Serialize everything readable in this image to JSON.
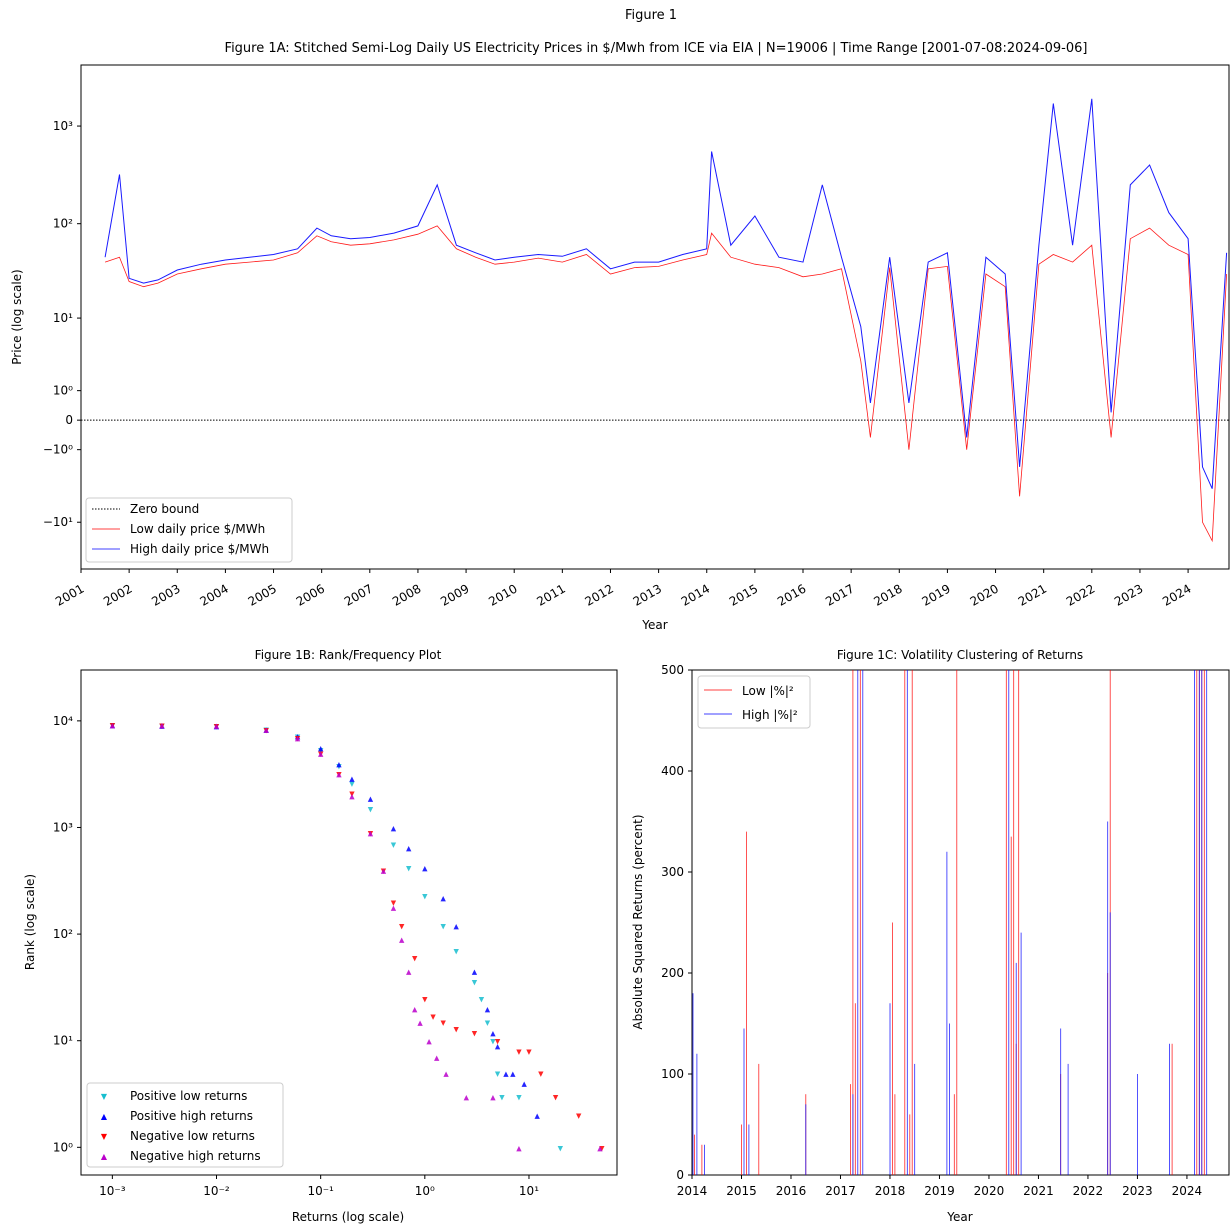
{
  "figure": {
    "suptitle": "Figure 1"
  },
  "chart_data": [
    {
      "id": "1A",
      "type": "line",
      "title": "Figure 1A: Stitched Semi-Log Daily US Electricity Prices in $/Mwh from ICE via EIA | N=19006 | Time Range [2001-07-08:2024-09-06]",
      "xlabel": "Year",
      "ylabel": "Price (log scale)",
      "yscale": "symlog",
      "xlim": [
        2001.0,
        2024.85
      ],
      "ylim": [
        -32,
        4200
      ],
      "x_ticks": [
        "2001",
        "2002",
        "2003",
        "2004",
        "2005",
        "2006",
        "2007",
        "2008",
        "2009",
        "2010",
        "2011",
        "2012",
        "2013",
        "2014",
        "2015",
        "2016",
        "2017",
        "2018",
        "2019",
        "2020",
        "2021",
        "2022",
        "2023",
        "2024"
      ],
      "y_ticks": [
        {
          "value": 1000,
          "label": "10³"
        },
        {
          "value": 100,
          "label": "10²"
        },
        {
          "value": 10,
          "label": "10¹"
        },
        {
          "value": 1,
          "label": "10⁰"
        },
        {
          "value": 0,
          "label": "0"
        },
        {
          "value": -1,
          "label": "−10⁰"
        },
        {
          "value": -10,
          "label": "−10¹"
        }
      ],
      "legend_position": "lower-left",
      "legend": [
        {
          "label": "Zero bound",
          "color": "#000000",
          "style": "dotted"
        },
        {
          "label": "Low daily price $/MWh",
          "color": "#ff0000",
          "style": "solid"
        },
        {
          "label": "High daily price $/MWh",
          "color": "#0000ff",
          "style": "solid"
        }
      ],
      "series": [
        {
          "name": "Low daily price $/MWh",
          "color": "#ff0000",
          "x": [
            2001.5,
            2001.8,
            2002.0,
            2002.3,
            2002.6,
            2003.0,
            2003.5,
            2004.0,
            2004.5,
            2005.0,
            2005.5,
            2005.9,
            2006.2,
            2006.6,
            2007.0,
            2007.5,
            2008.0,
            2008.4,
            2008.8,
            2009.2,
            2009.6,
            2010.0,
            2010.5,
            2011.0,
            2011.5,
            2012.0,
            2012.5,
            2013.0,
            2013.5,
            2014.0,
            2014.1,
            2014.5,
            2015.0,
            2015.5,
            2016.0,
            2016.4,
            2016.8,
            2017.2,
            2017.4,
            2017.8,
            2018.2,
            2018.6,
            2019.0,
            2019.4,
            2019.8,
            2020.2,
            2020.5,
            2020.9,
            2021.2,
            2021.6,
            2022.0,
            2022.4,
            2022.8,
            2023.2,
            2023.6,
            2024.0,
            2024.3,
            2024.5,
            2024.8
          ],
          "y": [
            40,
            45,
            25,
            22,
            24,
            30,
            34,
            38,
            40,
            42,
            50,
            75,
            65,
            60,
            62,
            68,
            78,
            95,
            55,
            45,
            38,
            40,
            44,
            40,
            48,
            30,
            35,
            36,
            42,
            48,
            80,
            45,
            38,
            35,
            28,
            30,
            34,
            3,
            -0.5,
            35,
            -1,
            34,
            36,
            -1,
            30,
            22,
            -5,
            38,
            48,
            40,
            60,
            -0.5,
            70,
            90,
            60,
            48,
            -10,
            -16,
            30
          ]
        },
        {
          "name": "High daily price $/MWh",
          "color": "#0000ff",
          "x": [
            2001.5,
            2001.8,
            2002.0,
            2002.3,
            2002.6,
            2003.0,
            2003.5,
            2004.0,
            2004.5,
            2005.0,
            2005.5,
            2005.9,
            2006.2,
            2006.6,
            2007.0,
            2007.5,
            2008.0,
            2008.4,
            2008.8,
            2009.2,
            2009.6,
            2010.0,
            2010.5,
            2011.0,
            2011.5,
            2012.0,
            2012.5,
            2013.0,
            2013.5,
            2014.0,
            2014.1,
            2014.5,
            2015.0,
            2015.5,
            2016.0,
            2016.4,
            2016.8,
            2017.2,
            2017.4,
            2017.8,
            2018.2,
            2018.6,
            2019.0,
            2019.4,
            2019.8,
            2020.2,
            2020.5,
            2020.9,
            2021.2,
            2021.6,
            2022.0,
            2022.4,
            2022.8,
            2023.2,
            2023.6,
            2024.0,
            2024.3,
            2024.5,
            2024.8
          ],
          "y": [
            45,
            320,
            27,
            24,
            26,
            33,
            38,
            42,
            45,
            48,
            55,
            90,
            75,
            70,
            72,
            80,
            95,
            250,
            60,
            50,
            42,
            45,
            48,
            46,
            55,
            34,
            40,
            40,
            48,
            55,
            550,
            60,
            120,
            45,
            40,
            250,
            45,
            8,
            0.5,
            45,
            0.5,
            40,
            50,
            -0.5,
            45,
            30,
            -2,
            60,
            1700,
            60,
            1900,
            0.2,
            250,
            400,
            130,
            70,
            -2,
            -4,
            50
          ]
        }
      ],
      "annotations": {
        "zero_line": 0
      }
    },
    {
      "id": "1B",
      "type": "scatter",
      "title": "Figure 1B: Rank/Frequency Plot",
      "xlabel": "Returns (log scale)",
      "ylabel": "Rank (log scale)",
      "xscale": "log",
      "yscale": "log",
      "xlim": [
        0.0005,
        70
      ],
      "ylim": [
        0.55,
        30000
      ],
      "x_ticks": [
        {
          "value": 0.001,
          "label": "10⁻³"
        },
        {
          "value": 0.01,
          "label": "10⁻²"
        },
        {
          "value": 0.1,
          "label": "10⁻¹"
        },
        {
          "value": 1,
          "label": "10⁰"
        },
        {
          "value": 10,
          "label": "10¹"
        }
      ],
      "y_ticks": [
        {
          "value": 1,
          "label": "10⁰"
        },
        {
          "value": 10,
          "label": "10¹"
        },
        {
          "value": 100,
          "label": "10²"
        },
        {
          "value": 1000,
          "label": "10³"
        },
        {
          "value": 10000,
          "label": "10⁴"
        }
      ],
      "legend_position": "lower-left",
      "series": [
        {
          "name": "Positive low returns",
          "color": "#17becf",
          "marker": "triangle-down",
          "x": [
            0.001,
            0.003,
            0.01,
            0.03,
            0.06,
            0.1,
            0.15,
            0.2,
            0.3,
            0.5,
            0.7,
            1.0,
            1.5,
            2.0,
            3.0,
            3.5,
            4.0,
            4.5,
            5.0,
            5.5,
            8,
            20
          ],
          "y": [
            9200,
            9100,
            9000,
            8400,
            7200,
            5400,
            3800,
            2600,
            1500,
            700,
            420,
            230,
            120,
            70,
            36,
            25,
            15,
            10,
            5,
            3,
            3,
            1
          ]
        },
        {
          "name": "Positive high returns",
          "color": "#0000ff",
          "marker": "triangle-up",
          "x": [
            0.001,
            0.003,
            0.01,
            0.03,
            0.06,
            0.1,
            0.15,
            0.2,
            0.3,
            0.5,
            0.7,
            1.0,
            1.5,
            2.0,
            3.0,
            4.0,
            4.5,
            5.0,
            6.0,
            7.0,
            9.0,
            12.0
          ],
          "y": [
            9200,
            9100,
            9000,
            8400,
            7300,
            5600,
            4000,
            2900,
            1900,
            1000,
            650,
            420,
            220,
            120,
            45,
            20,
            12,
            9,
            5,
            5,
            4,
            2
          ]
        },
        {
          "name": "Negative low returns",
          "color": "#ff0000",
          "marker": "triangle-down",
          "x": [
            0.001,
            0.003,
            0.01,
            0.03,
            0.06,
            0.1,
            0.15,
            0.2,
            0.3,
            0.4,
            0.5,
            0.6,
            0.8,
            1.0,
            1.2,
            1.5,
            2.0,
            3.0,
            5.0,
            8.0,
            10.0,
            13.0,
            18.0,
            30.0,
            50.0
          ],
          "y": [
            9200,
            9100,
            9000,
            8300,
            7000,
            5000,
            3200,
            2100,
            900,
            400,
            200,
            120,
            60,
            25,
            17,
            15,
            13,
            12,
            10,
            8,
            8,
            5,
            3,
            2,
            1
          ]
        },
        {
          "name": "Negative high returns",
          "color": "#bb00cc",
          "marker": "triangle-up",
          "x": [
            0.001,
            0.003,
            0.01,
            0.03,
            0.06,
            0.1,
            0.15,
            0.2,
            0.3,
            0.4,
            0.5,
            0.6,
            0.7,
            0.8,
            0.9,
            1.1,
            1.3,
            1.6,
            2.5,
            4.5,
            8.0,
            48.0
          ],
          "y": [
            9200,
            9200,
            9100,
            8400,
            7000,
            5000,
            3200,
            2000,
            900,
            400,
            180,
            90,
            45,
            20,
            15,
            10,
            7,
            5,
            3,
            3,
            1,
            1
          ]
        }
      ]
    },
    {
      "id": "1C",
      "type": "line",
      "title": "Figure 1C: Volatility Clustering of Returns",
      "xlabel": "Year",
      "ylabel": "Absolute Squared Returns (percent)",
      "xlim": [
        2014.0,
        2024.85
      ],
      "ylim": [
        0,
        500
      ],
      "x_ticks": [
        "2014",
        "2015",
        "2016",
        "2017",
        "2018",
        "2019",
        "2020",
        "2021",
        "2022",
        "2023",
        "2024"
      ],
      "y_ticks": [
        0,
        100,
        200,
        300,
        400,
        500
      ],
      "legend_position": "top-left",
      "series": [
        {
          "name": "Low |%|²",
          "color": "#ff0000",
          "x": [
            2014.05,
            2014.2,
            2015.0,
            2015.1,
            2015.35,
            2016.3,
            2017.2,
            2017.25,
            2017.3,
            2017.4,
            2018.05,
            2018.1,
            2018.3,
            2018.4,
            2018.45,
            2019.3,
            2019.35,
            2020.35,
            2020.45,
            2020.5,
            2020.55,
            2020.6,
            2021.45,
            2022.4,
            2022.45,
            2023.7,
            2024.2,
            2024.25,
            2024.3,
            2024.35
          ],
          "y": [
            40,
            30,
            50,
            340,
            110,
            80,
            90,
            500,
            170,
            500,
            250,
            80,
            500,
            60,
            500,
            80,
            500,
            500,
            335,
            500,
            130,
            500,
            100,
            200,
            500,
            130,
            500,
            500,
            500,
            500
          ]
        },
        {
          "name": "High |%|²",
          "color": "#0000ff",
          "x": [
            2014.02,
            2014.1,
            2014.25,
            2015.05,
            2015.15,
            2016.3,
            2017.25,
            2017.35,
            2017.45,
            2018.0,
            2018.35,
            2018.5,
            2019.15,
            2019.2,
            2020.4,
            2020.55,
            2020.65,
            2021.45,
            2021.6,
            2022.4,
            2022.45,
            2023.0,
            2023.65,
            2024.15,
            2024.25,
            2024.3,
            2024.4
          ],
          "y": [
            180,
            120,
            30,
            145,
            50,
            70,
            80,
            500,
            500,
            170,
            500,
            110,
            320,
            150,
            500,
            210,
            240,
            145,
            110,
            350,
            260,
            100,
            130,
            500,
            500,
            500,
            500
          ]
        }
      ]
    }
  ]
}
